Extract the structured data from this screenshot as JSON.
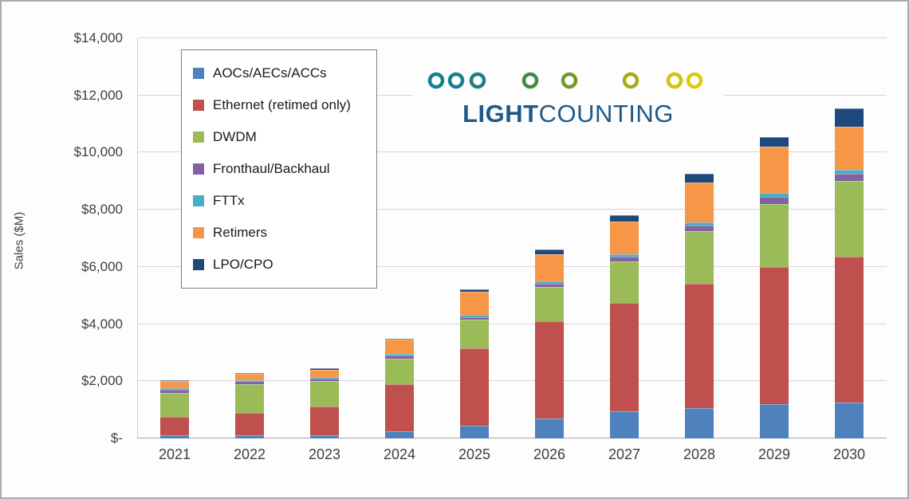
{
  "brand": {
    "bold": "LIGHT",
    "regular": "COUNTING",
    "color": "#1e5a8a"
  },
  "chart_data": {
    "type": "bar",
    "subtype": "stacked",
    "title": "",
    "ylabel": "Sales ($M)",
    "xlabel": "",
    "ylim": [
      0,
      14000
    ],
    "ytick_step": 2000,
    "ytick_labels": [
      "$-",
      "$2,000",
      "$4,000",
      "$6,000",
      "$8,000",
      "$10,000",
      "$12,000",
      "$14,000"
    ],
    "grid": true,
    "legend_position": "top-left",
    "categories": [
      "2021",
      "2022",
      "2023",
      "2024",
      "2025",
      "2026",
      "2027",
      "2028",
      "2029",
      "2030"
    ],
    "series": [
      {
        "name": "AOCs/AECs/ACCs",
        "color": "#4F81BD",
        "values": [
          100,
          100,
          120,
          250,
          450,
          700,
          950,
          1050,
          1200,
          1250
        ]
      },
      {
        "name": "Ethernet (retimed only)",
        "color": "#C0504D",
        "values": [
          650,
          800,
          1000,
          1650,
          2700,
          3400,
          3800,
          4350,
          4800,
          5100
        ]
      },
      {
        "name": "DWDM",
        "color": "#9BBB59",
        "values": [
          850,
          1000,
          900,
          900,
          1000,
          1200,
          1450,
          1850,
          2200,
          2650
        ]
      },
      {
        "name": "Fronthaul/Backhaul",
        "color": "#8064A2",
        "values": [
          100,
          100,
          80,
          100,
          100,
          120,
          150,
          200,
          250,
          250
        ]
      },
      {
        "name": "FTTx",
        "color": "#4BACC6",
        "values": [
          50,
          50,
          50,
          50,
          80,
          80,
          100,
          100,
          150,
          150
        ]
      },
      {
        "name": "Retimers",
        "color": "#F79646",
        "values": [
          250,
          200,
          250,
          500,
          800,
          950,
          1150,
          1400,
          1600,
          1500
        ]
      },
      {
        "name": "LPO/CPO",
        "color": "#1F497D",
        "values": [
          50,
          50,
          50,
          50,
          100,
          150,
          200,
          300,
          350,
          650
        ]
      }
    ]
  }
}
